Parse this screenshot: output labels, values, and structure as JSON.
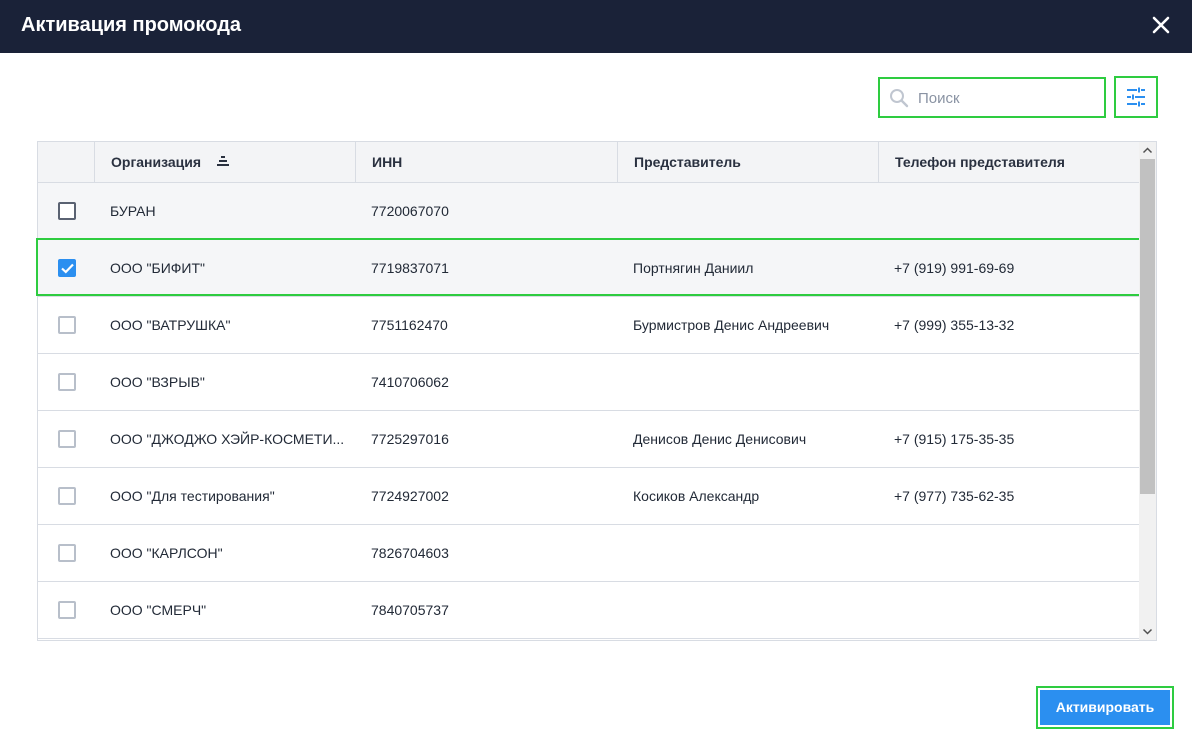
{
  "dialog": {
    "title": "Активация промокода"
  },
  "search": {
    "placeholder": "Поиск",
    "value": ""
  },
  "table": {
    "columns": [
      "Организация",
      "ИНН",
      "Представитель",
      "Телефон представителя"
    ],
    "sorted_column": "Организация",
    "rows": [
      {
        "checked": false,
        "org": "БУРАН",
        "inn": "7720067070",
        "rep": "",
        "phone": ""
      },
      {
        "checked": true,
        "org": "ООО \"БИФИТ\"",
        "inn": "7719837071",
        "rep": "Портнягин Даниил",
        "phone": "+7 (919) 991-69-69"
      },
      {
        "checked": false,
        "org": "ООО \"ВАТРУШКА\"",
        "inn": "7751162470",
        "rep": "Бурмистров Денис Андреевич",
        "phone": "+7 (999) 355-13-32"
      },
      {
        "checked": false,
        "org": "ООО \"ВЗРЫВ\"",
        "inn": "7410706062",
        "rep": "",
        "phone": ""
      },
      {
        "checked": false,
        "org": "ООО \"ДЖОДЖО ХЭЙР-КОСМЕТИ...",
        "inn": "7725297016",
        "rep": "Денисов Денис Денисович",
        "phone": "+7 (915) 175-35-35"
      },
      {
        "checked": false,
        "org": "ООО \"Для тестирования\"",
        "inn": "7724927002",
        "rep": "Косиков Александр",
        "phone": "+7 (977) 735-62-35"
      },
      {
        "checked": false,
        "org": "ООО \"КАРЛСОН\"",
        "inn": "7826704603",
        "rep": "",
        "phone": ""
      },
      {
        "checked": false,
        "org": "ООО \"СМЕРЧ\"",
        "inn": "7840705737",
        "rep": "",
        "phone": ""
      }
    ]
  },
  "footer": {
    "activate_label": "Активировать"
  },
  "icons": {
    "close": "close-icon",
    "search": "search-icon",
    "filter": "filter-settings-icon",
    "sort": "sort-icon",
    "check": "checkmark-icon"
  },
  "colors": {
    "header_bg": "#1a2238",
    "accent": "#2b8ff0",
    "highlight": "#2ecc40"
  }
}
